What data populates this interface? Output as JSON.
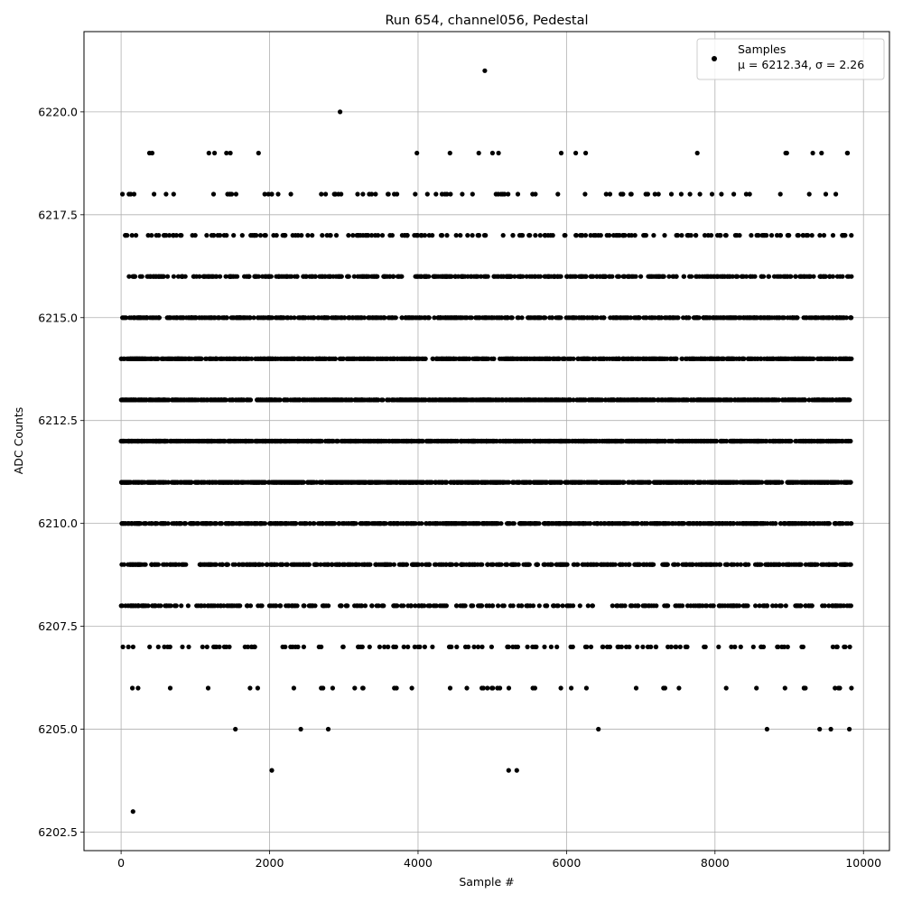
{
  "chart_data": {
    "type": "scatter",
    "title": "Run 654, channel056, Pedestal",
    "xlabel": "Sample #",
    "ylabel": "ADC Counts",
    "xlim": [
      -500,
      10350
    ],
    "ylim": [
      6202.05,
      6221.95
    ],
    "xticks": [
      0,
      2000,
      4000,
      6000,
      8000,
      10000
    ],
    "xtick_labels": [
      "0",
      "2000",
      "4000",
      "6000",
      "8000",
      "10000"
    ],
    "yticks": [
      6202.5,
      6205.0,
      6207.5,
      6210.0,
      6212.5,
      6215.0,
      6217.5,
      6220.0
    ],
    "ytick_labels": [
      "6202.5",
      "6205.0",
      "6207.5",
      "6210.0",
      "6212.5",
      "6215.0",
      "6217.5",
      "6220.0"
    ],
    "grid": true,
    "legend": {
      "placement": "top-right",
      "label_line1": "Samples",
      "label_line2": "μ = 6212.34, σ = 2.26"
    },
    "marker_color": "#000000",
    "series": [
      {
        "name": "Samples",
        "x": [
          160,
          2030,
          5220,
          5330,
          1540,
          2420,
          2790,
          6430,
          8700,
          9410,
          9560,
          9810,
          2950,
          4900
        ],
        "y": [
          6203,
          6204,
          6204,
          6204,
          6205,
          6205,
          6205,
          6205,
          6205,
          6205,
          6205,
          6205,
          6220,
          6221
        ]
      }
    ],
    "dense_levels": [
      {
        "y": 6206,
        "count": 45
      },
      {
        "y": 6207,
        "count": 130
      },
      {
        "y": 6208,
        "count": 320
      },
      {
        "y": 6209,
        "count": 520
      },
      {
        "y": 6210,
        "count": 750
      },
      {
        "y": 6211,
        "count": 1050
      },
      {
        "y": 6212,
        "count": 1100
      },
      {
        "y": 6213,
        "count": 1000
      },
      {
        "y": 6214,
        "count": 850
      },
      {
        "y": 6215,
        "count": 650
      },
      {
        "y": 6216,
        "count": 450
      },
      {
        "y": 6217,
        "count": 200
      },
      {
        "y": 6218,
        "count": 80
      },
      {
        "y": 6219,
        "count": 22
      }
    ],
    "sample_range": [
      0,
      9840
    ]
  }
}
